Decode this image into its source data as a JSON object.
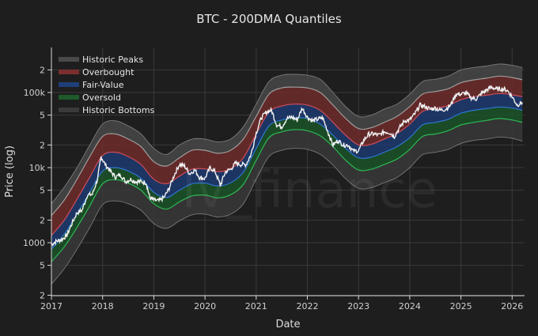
{
  "chart_data": {
    "type": "area",
    "title": "BTC - 200DMA Quantiles",
    "xlabel": "Date",
    "ylabel": "Price (log)",
    "yscale": "log",
    "ylim": [
      200,
      300000
    ],
    "xlim": [
      2017.0,
      2026.25
    ],
    "grid": true,
    "legend_position": "top-left inside",
    "watermark": "lv_finance",
    "x_ticks": [
      "2017",
      "2018",
      "2019",
      "2020",
      "2021",
      "2022",
      "2023",
      "2024",
      "2025",
      "2026"
    ],
    "y_ticks": [
      {
        "value": 200,
        "label": "2"
      },
      {
        "value": 500,
        "label": "5"
      },
      {
        "value": 1000,
        "label": "1000"
      },
      {
        "value": 2000,
        "label": "2"
      },
      {
        "value": 5000,
        "label": "5"
      },
      {
        "value": 10000,
        "label": "10k"
      },
      {
        "value": 20000,
        "label": "2"
      },
      {
        "value": 50000,
        "label": "5"
      },
      {
        "value": 100000,
        "label": "100k"
      },
      {
        "value": 200000,
        "label": "2"
      }
    ],
    "legend": [
      {
        "name": "Historic Peaks",
        "color": "#4a4a4a"
      },
      {
        "name": "Overbought",
        "color": "#7a2e2e"
      },
      {
        "name": "Fair-Value",
        "color": "#1f3f7a"
      },
      {
        "name": "Oversold",
        "color": "#1e5a2c"
      },
      {
        "name": "Historic Bottoms",
        "color": "#3a3a3a"
      }
    ],
    "x": [
      2017.0,
      2017.25,
      2017.5,
      2017.75,
      2018.0,
      2018.25,
      2018.5,
      2018.75,
      2019.0,
      2019.25,
      2019.5,
      2019.75,
      2020.0,
      2020.25,
      2020.5,
      2020.75,
      2021.0,
      2021.25,
      2021.5,
      2021.75,
      2022.0,
      2022.25,
      2022.5,
      2022.75,
      2023.0,
      2023.25,
      2023.5,
      2023.75,
      2024.0,
      2024.25,
      2024.5,
      2024.75,
      2025.0,
      2025.25,
      2025.5,
      2025.75,
      2026.0,
      2026.2
    ],
    "series": [
      {
        "name": "Historic Peaks upper",
        "values": [
          3300,
          5500,
          10000,
          20000,
          38000,
          42000,
          36000,
          28000,
          18000,
          15000,
          20000,
          24000,
          24000,
          22000,
          24000,
          35000,
          70000,
          140000,
          170000,
          175000,
          170000,
          150000,
          100000,
          65000,
          48000,
          50000,
          60000,
          70000,
          95000,
          140000,
          150000,
          165000,
          200000,
          215000,
          225000,
          240000,
          230000,
          215000
        ]
      },
      {
        "name": "Overbought upper / Peaks lower",
        "values": [
          2300,
          3700,
          7000,
          14000,
          26000,
          28000,
          24000,
          19000,
          12000,
          10500,
          13500,
          17000,
          17000,
          15500,
          17000,
          24000,
          48000,
          95000,
          115000,
          118000,
          115000,
          100000,
          68000,
          45000,
          33000,
          34000,
          40000,
          48000,
          65000,
          95000,
          103000,
          112000,
          135000,
          147000,
          155000,
          165000,
          158000,
          148000
        ]
      },
      {
        "name": "Fair-Value upper / Overbought lower",
        "values": [
          1250,
          2000,
          3800,
          7500,
          14500,
          16000,
          14000,
          11000,
          7000,
          6100,
          7700,
          9500,
          9600,
          8800,
          9700,
          13500,
          28000,
          55000,
          66000,
          70000,
          68000,
          58000,
          40000,
          27000,
          20000,
          20500,
          24000,
          28500,
          38000,
          56000,
          61000,
          67000,
          80000,
          88000,
          92000,
          97000,
          93000,
          88000
        ]
      },
      {
        "name": "Oversold upper / Fair-Value lower",
        "values": [
          820,
          1300,
          2400,
          4700,
          9000,
          10000,
          9000,
          7200,
          4700,
          4000,
          5000,
          6100,
          6200,
          5700,
          6300,
          8700,
          18000,
          36000,
          43000,
          46000,
          45000,
          38000,
          27000,
          18000,
          13500,
          13800,
          16000,
          19000,
          25000,
          37000,
          40000,
          44000,
          53000,
          58000,
          61000,
          64000,
          62000,
          58000
        ]
      },
      {
        "name": "Historic Bottoms upper / Oversold lower",
        "values": [
          560,
          880,
          1600,
          3100,
          6100,
          6900,
          6200,
          5000,
          3300,
          2800,
          3500,
          4200,
          4300,
          3950,
          4350,
          6000,
          12500,
          25000,
          30000,
          32000,
          31000,
          26500,
          19000,
          12500,
          9300,
          9500,
          11000,
          13000,
          17500,
          26000,
          28000,
          31000,
          37000,
          40000,
          42500,
          45000,
          43000,
          40000
        ]
      },
      {
        "name": "Historic Bottoms lower",
        "values": [
          280,
          450,
          820,
          1600,
          3200,
          3600,
          3300,
          2700,
          1800,
          1550,
          1950,
          2350,
          2400,
          2200,
          2400,
          3300,
          7000,
          14000,
          17000,
          18000,
          17500,
          15000,
          10800,
          7100,
          5300,
          5400,
          6300,
          7400,
          10000,
          14800,
          16000,
          17500,
          21000,
          23000,
          24000,
          25500,
          24500,
          22500
        ]
      },
      {
        "name": "BTC Price",
        "x": [
          2017.0,
          2017.1,
          2017.2,
          2017.3,
          2017.4,
          2017.5,
          2017.6,
          2017.7,
          2017.8,
          2017.9,
          2017.97,
          2018.05,
          2018.15,
          2018.25,
          2018.35,
          2018.45,
          2018.55,
          2018.65,
          2018.75,
          2018.85,
          2018.92,
          2019.0,
          2019.1,
          2019.2,
          2019.3,
          2019.4,
          2019.5,
          2019.6,
          2019.7,
          2019.8,
          2019.9,
          2020.0,
          2020.1,
          2020.2,
          2020.3,
          2020.4,
          2020.5,
          2020.6,
          2020.7,
          2020.8,
          2020.9,
          2021.0,
          2021.1,
          2021.2,
          2021.3,
          2021.4,
          2021.5,
          2021.6,
          2021.7,
          2021.8,
          2021.9,
          2022.0,
          2022.1,
          2022.2,
          2022.3,
          2022.4,
          2022.5,
          2022.6,
          2022.7,
          2022.8,
          2022.9,
          2023.0,
          2023.1,
          2023.2,
          2023.3,
          2023.4,
          2023.5,
          2023.6,
          2023.7,
          2023.8,
          2023.9,
          2024.0,
          2024.1,
          2024.2,
          2024.3,
          2024.4,
          2024.5,
          2024.6,
          2024.7,
          2024.8,
          2024.9,
          2025.0,
          2025.1,
          2025.2,
          2025.3,
          2025.4,
          2025.5,
          2025.6,
          2025.7,
          2025.8,
          2025.9,
          2026.0,
          2026.1,
          2026.2
        ],
        "values": [
          950,
          1050,
          1100,
          1250,
          1800,
          2500,
          2700,
          4300,
          4400,
          7000,
          14000,
          11000,
          9000,
          7500,
          8000,
          6500,
          7000,
          6500,
          6500,
          6300,
          4000,
          3700,
          3600,
          4000,
          5300,
          8000,
          11000,
          10500,
          8300,
          9300,
          7300,
          7200,
          10000,
          8800,
          5800,
          8800,
          9500,
          11500,
          11000,
          11000,
          15000,
          29000,
          46000,
          55000,
          58000,
          37000,
          35000,
          45000,
          47000,
          43000,
          62000,
          47000,
          42000,
          44000,
          46000,
          30000,
          20000,
          23000,
          20000,
          20000,
          16500,
          16800,
          23000,
          28000,
          28000,
          27000,
          30000,
          29500,
          26000,
          34000,
          42000,
          43000,
          52000,
          68000,
          65000,
          60000,
          62000,
          58000,
          60000,
          68000,
          95000,
          95000,
          98000,
          85000,
          82000,
          97000,
          108000,
          118000,
          110000,
          112000,
          108000,
          88000,
          68000,
          74000
        ]
      }
    ]
  }
}
